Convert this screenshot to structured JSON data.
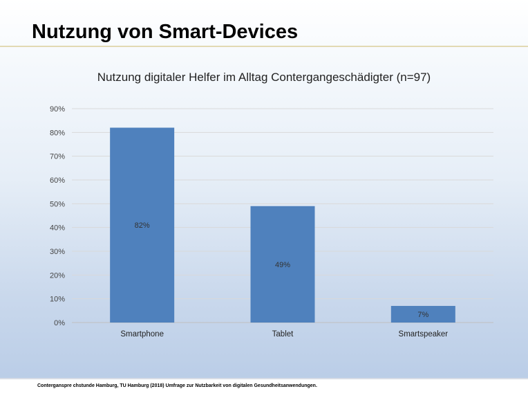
{
  "slide": {
    "title": "Nutzung von Smart-Devices",
    "footer": "Conterganspre chstunde Hamburg, TU Hamburg (2018) Umfrage zur Nutzbarkeit von digitalen Gesundheitsanwendungen."
  },
  "colors": {
    "bar": "#4f81bd",
    "grid": "#d9d9d9"
  },
  "chart_data": {
    "type": "bar",
    "title": "Nutzung digitaler Helfer im Alltag Contergangeschädigter (n=97)",
    "categories": [
      "Smartphone",
      "Tablet",
      "Smartspeaker"
    ],
    "values": [
      82,
      49,
      7
    ],
    "value_labels": [
      "82%",
      "49%",
      "7%"
    ],
    "ylim": [
      0,
      90
    ],
    "yticks": [
      0,
      10,
      20,
      30,
      40,
      50,
      60,
      70,
      80,
      90
    ],
    "ytick_labels": [
      "0%",
      "10%",
      "20%",
      "30%",
      "40%",
      "50%",
      "60%",
      "70%",
      "80%",
      "90%"
    ],
    "xlabel": "",
    "ylabel": "",
    "grid": true,
    "legend": "none"
  }
}
